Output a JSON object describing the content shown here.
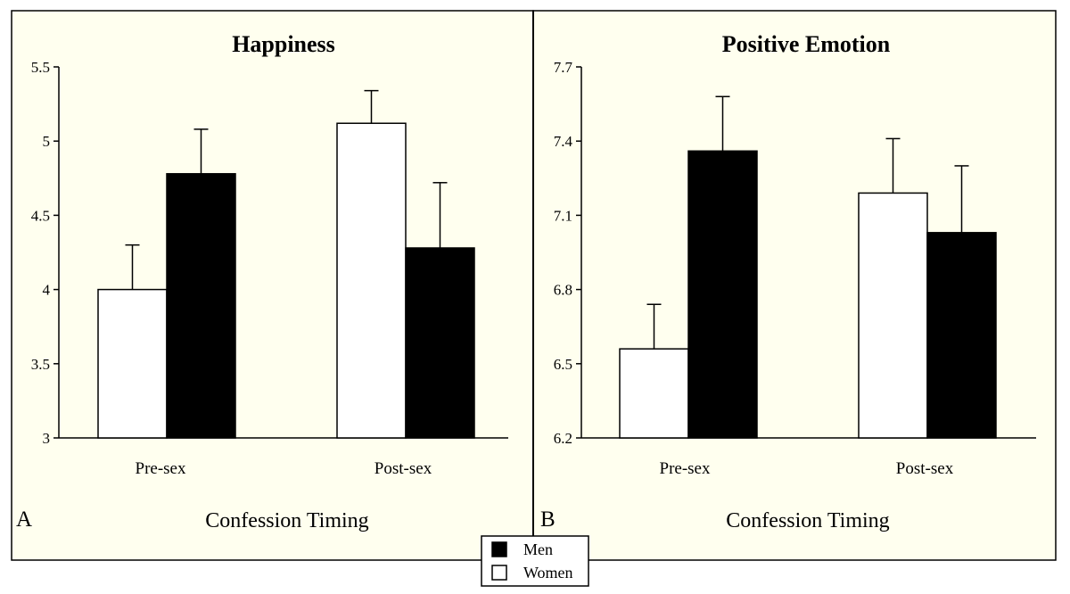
{
  "chart_data": [
    {
      "type": "bar",
      "panel": "A",
      "title": "Happiness",
      "xlabel": "Confession Timing",
      "ylabel": "",
      "categories": [
        "Pre-sex",
        "Post-sex"
      ],
      "ylim": [
        3,
        5.5
      ],
      "yticks": [
        3,
        3.5,
        4,
        4.5,
        5,
        5.5
      ],
      "ytick_labels": [
        "3",
        "3.5",
        "4",
        "4.5",
        "5",
        "5.5"
      ],
      "series": [
        {
          "name": "Women",
          "color": "#ffffff",
          "values": [
            4.0,
            5.12
          ],
          "error": [
            0.3,
            0.22
          ]
        },
        {
          "name": "Men",
          "color": "#000000",
          "values": [
            4.78,
            4.28
          ],
          "error": [
            0.3,
            0.44
          ]
        }
      ],
      "grid": false
    },
    {
      "type": "bar",
      "panel": "B",
      "title": "Positive Emotion",
      "xlabel": "Confession Timing",
      "ylabel": "",
      "categories": [
        "Pre-sex",
        "Post-sex"
      ],
      "ylim": [
        6.2,
        7.7
      ],
      "yticks": [
        6.2,
        6.5,
        6.8,
        7.1,
        7.4,
        7.7
      ],
      "ytick_labels": [
        "6.2",
        "6.5",
        "6.8",
        "7.1",
        "7.4",
        "7.7"
      ],
      "series": [
        {
          "name": "Women",
          "color": "#ffffff",
          "values": [
            6.56,
            7.19
          ],
          "error": [
            0.18,
            0.22
          ]
        },
        {
          "name": "Men",
          "color": "#000000",
          "values": [
            7.36,
            7.03
          ],
          "error": [
            0.22,
            0.27
          ]
        }
      ],
      "grid": false
    }
  ],
  "legend": {
    "placement": "bottom-center",
    "entries": [
      {
        "label": "Men",
        "color": "#000000"
      },
      {
        "label": "Women",
        "color": "#ffffff"
      }
    ]
  },
  "colors": {
    "panel_background": "#ffffef",
    "page_background": "#ffffff"
  }
}
